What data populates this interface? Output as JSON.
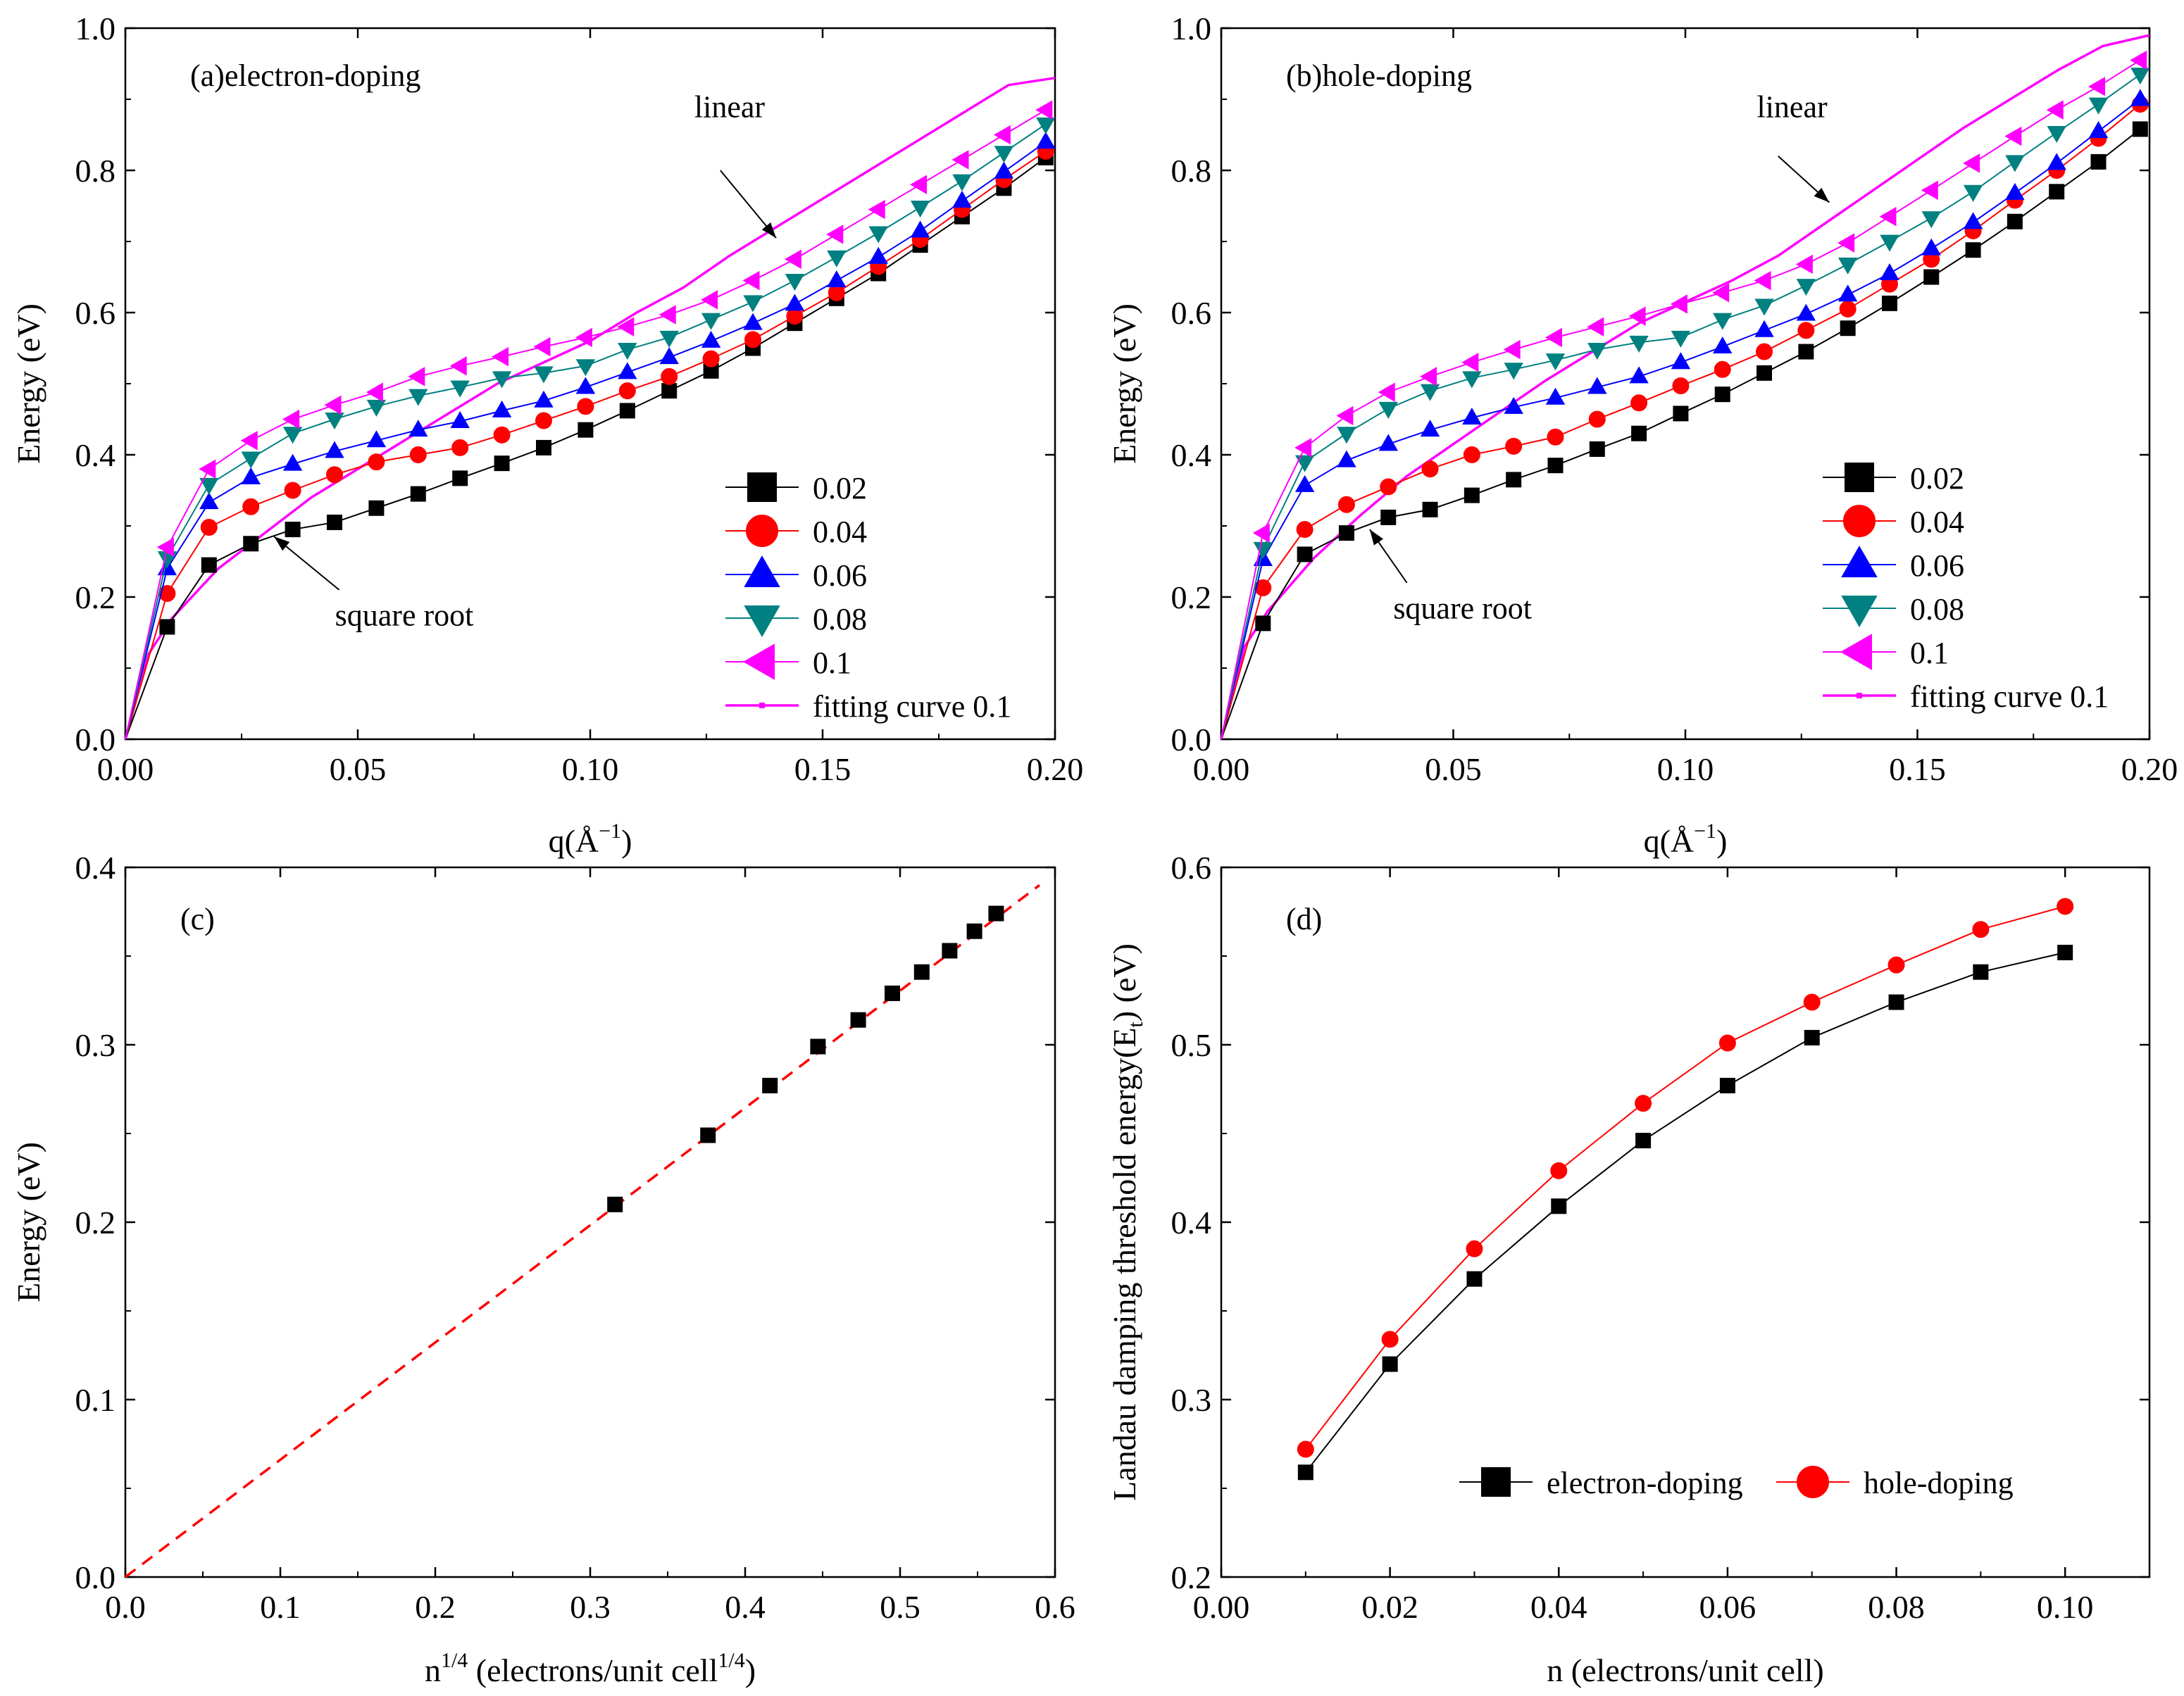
{
  "chart_data": [
    {
      "id": "a",
      "type": "line",
      "panel_label": "(a)",
      "title": "electron-doping",
      "xlabel": "q(Å",
      "xlabel_sup": "−1",
      "xlabel_end": ")",
      "ylabel": "Energy (eV)",
      "xlim": [
        0,
        0.2
      ],
      "ylim": [
        0,
        1.0
      ],
      "xticks": [
        0,
        0.05,
        0.1,
        0.15,
        0.2
      ],
      "xtick_labels": [
        "0.00",
        "0.05",
        "0.10",
        "0.15",
        "0.20"
      ],
      "yticks": [
        0,
        0.2,
        0.4,
        0.6,
        0.8,
        1.0
      ],
      "ytick_labels": [
        "0.0",
        "0.2",
        "0.4",
        "0.6",
        "0.8",
        "1.0"
      ],
      "x": [
        0,
        0.009,
        0.018,
        0.027,
        0.036,
        0.045,
        0.054,
        0.063,
        0.072,
        0.081,
        0.09,
        0.099,
        0.108,
        0.117,
        0.126,
        0.135,
        0.144,
        0.153,
        0.162,
        0.171,
        0.18,
        0.189,
        0.198
      ],
      "series": [
        {
          "name": "0.02",
          "color": "#000000",
          "marker": "square",
          "values": [
            0,
            0.158,
            0.245,
            0.275,
            0.295,
            0.305,
            0.325,
            0.345,
            0.367,
            0.388,
            0.41,
            0.435,
            0.462,
            0.49,
            0.518,
            0.55,
            0.585,
            0.62,
            0.655,
            0.695,
            0.735,
            0.775,
            0.818
          ]
        },
        {
          "name": "0.04",
          "color": "#ff0000",
          "marker": "circle",
          "values": [
            0,
            0.205,
            0.298,
            0.327,
            0.35,
            0.372,
            0.39,
            0.4,
            0.41,
            0.428,
            0.448,
            0.468,
            0.49,
            0.51,
            0.535,
            0.562,
            0.595,
            0.628,
            0.665,
            0.703,
            0.745,
            0.787,
            0.827
          ]
        },
        {
          "name": "0.06",
          "color": "#0000ff",
          "marker": "triangle-up",
          "values": [
            0,
            0.24,
            0.333,
            0.368,
            0.387,
            0.405,
            0.42,
            0.435,
            0.447,
            0.462,
            0.476,
            0.495,
            0.516,
            0.537,
            0.56,
            0.585,
            0.612,
            0.645,
            0.678,
            0.715,
            0.757,
            0.798,
            0.84
          ]
        },
        {
          "name": "0.08",
          "color": "#008080",
          "marker": "triangle-down",
          "values": [
            0,
            0.255,
            0.358,
            0.395,
            0.43,
            0.45,
            0.468,
            0.483,
            0.495,
            0.508,
            0.515,
            0.525,
            0.548,
            0.565,
            0.59,
            0.615,
            0.645,
            0.678,
            0.712,
            0.748,
            0.785,
            0.825,
            0.865
          ]
        },
        {
          "name": "0.1",
          "color": "#ff00ff",
          "marker": "triangle-left",
          "values": [
            0,
            0.27,
            0.38,
            0.42,
            0.45,
            0.47,
            0.488,
            0.51,
            0.525,
            0.538,
            0.552,
            0.565,
            0.58,
            0.597,
            0.618,
            0.645,
            0.675,
            0.71,
            0.745,
            0.78,
            0.815,
            0.85,
            0.885
          ]
        }
      ],
      "fit": {
        "name": "fitting curve 0.1",
        "color": "#ff00ff",
        "x": [
          0,
          0.005,
          0.01,
          0.02,
          0.03,
          0.04,
          0.05,
          0.06,
          0.07,
          0.08,
          0.09,
          0.1,
          0.11,
          0.12,
          0.13,
          0.14,
          0.15,
          0.16,
          0.17,
          0.18,
          0.19,
          0.2
        ],
        "y": [
          0,
          0.12,
          0.17,
          0.24,
          0.29,
          0.34,
          0.38,
          0.42,
          0.46,
          0.5,
          0.53,
          0.56,
          0.6,
          0.635,
          0.68,
          0.72,
          0.76,
          0.8,
          0.84,
          0.88,
          0.92,
          0.93
        ]
      },
      "annotations": [
        {
          "text": "linear",
          "tx": 0.13,
          "ty": 0.875,
          "ax": 0.14,
          "ay": 0.705,
          "from_x": 0.128,
          "from_y": 0.8
        },
        {
          "text": "square root",
          "tx": 0.06,
          "ty": 0.16,
          "ax": 0.032,
          "ay": 0.285,
          "from_x": 0.046,
          "from_y": 0.21
        }
      ],
      "legend_location": "lower-right"
    },
    {
      "id": "b",
      "type": "line",
      "panel_label": "(b)",
      "title": "hole-doping",
      "xlabel": "q(Å",
      "xlabel_sup": "−1",
      "xlabel_end": ")",
      "ylabel": "Energy (eV)",
      "xlim": [
        0,
        0.2
      ],
      "ylim": [
        0,
        1.0
      ],
      "xticks": [
        0,
        0.05,
        0.1,
        0.15,
        0.2
      ],
      "xtick_labels": [
        "0.00",
        "0.05",
        "0.10",
        "0.15",
        "0.20"
      ],
      "yticks": [
        0,
        0.2,
        0.4,
        0.6,
        0.8,
        1.0
      ],
      "ytick_labels": [
        "0.0",
        "0.2",
        "0.4",
        "0.6",
        "0.8",
        "1.0"
      ],
      "x": [
        0,
        0.009,
        0.018,
        0.027,
        0.036,
        0.045,
        0.054,
        0.063,
        0.072,
        0.081,
        0.09,
        0.099,
        0.108,
        0.117,
        0.126,
        0.135,
        0.144,
        0.153,
        0.162,
        0.171,
        0.18,
        0.189,
        0.198
      ],
      "series": [
        {
          "name": "0.02",
          "color": "#000000",
          "marker": "square",
          "values": [
            0,
            0.163,
            0.26,
            0.29,
            0.312,
            0.323,
            0.343,
            0.365,
            0.385,
            0.408,
            0.43,
            0.458,
            0.485,
            0.515,
            0.545,
            0.578,
            0.613,
            0.65,
            0.688,
            0.728,
            0.77,
            0.812,
            0.858
          ]
        },
        {
          "name": "0.04",
          "color": "#ff0000",
          "marker": "circle",
          "values": [
            0,
            0.213,
            0.295,
            0.33,
            0.355,
            0.38,
            0.4,
            0.412,
            0.425,
            0.45,
            0.473,
            0.497,
            0.52,
            0.545,
            0.575,
            0.605,
            0.64,
            0.675,
            0.715,
            0.758,
            0.8,
            0.845,
            0.893
          ]
        },
        {
          "name": "0.06",
          "color": "#0000ff",
          "marker": "triangle-up",
          "values": [
            0,
            0.253,
            0.357,
            0.392,
            0.415,
            0.435,
            0.452,
            0.467,
            0.48,
            0.495,
            0.51,
            0.53,
            0.552,
            0.575,
            0.598,
            0.625,
            0.655,
            0.69,
            0.727,
            0.768,
            0.81,
            0.855,
            0.9
          ]
        },
        {
          "name": "0.08",
          "color": "#008080",
          "marker": "triangle-down",
          "values": [
            0,
            0.268,
            0.39,
            0.43,
            0.465,
            0.49,
            0.508,
            0.52,
            0.533,
            0.548,
            0.558,
            0.565,
            0.59,
            0.61,
            0.638,
            0.668,
            0.7,
            0.733,
            0.77,
            0.812,
            0.853,
            0.893,
            0.935
          ]
        },
        {
          "name": "0.1",
          "color": "#ff00ff",
          "marker": "triangle-left",
          "values": [
            0,
            0.29,
            0.41,
            0.455,
            0.488,
            0.51,
            0.53,
            0.548,
            0.565,
            0.58,
            0.595,
            0.612,
            0.628,
            0.645,
            0.668,
            0.698,
            0.735,
            0.772,
            0.81,
            0.848,
            0.885,
            0.918,
            0.955
          ]
        }
      ],
      "fit": {
        "name": "fitting curve 0.1",
        "color": "#ff00ff",
        "x": [
          0,
          0.005,
          0.01,
          0.02,
          0.03,
          0.04,
          0.05,
          0.06,
          0.07,
          0.08,
          0.09,
          0.1,
          0.11,
          0.12,
          0.13,
          0.14,
          0.15,
          0.16,
          0.17,
          0.18,
          0.19,
          0.2
        ],
        "y": [
          0,
          0.13,
          0.18,
          0.255,
          0.315,
          0.37,
          0.415,
          0.46,
          0.505,
          0.545,
          0.585,
          0.615,
          0.645,
          0.68,
          0.725,
          0.77,
          0.815,
          0.86,
          0.9,
          0.94,
          0.975,
          0.99
        ]
      },
      "annotations": [
        {
          "text": "linear",
          "tx": 0.123,
          "ty": 0.875,
          "ax": 0.131,
          "ay": 0.755,
          "from_x": 0.12,
          "from_y": 0.82
        },
        {
          "text": "square root",
          "tx": 0.052,
          "ty": 0.17,
          "ax": 0.032,
          "ay": 0.295,
          "from_x": 0.04,
          "from_y": 0.22
        }
      ],
      "legend_location": "lower-right"
    },
    {
      "id": "c",
      "type": "scatter",
      "panel_label": "(c)",
      "xlabel": "n",
      "xlabel_sup": "1/4",
      "xlabel_mid": " (electrons/unit cell",
      "xlabel_sup2": "1/4",
      "xlabel_end": ")",
      "ylabel": "Energy (eV)",
      "xlim": [
        0,
        0.6
      ],
      "ylim": [
        0,
        0.4
      ],
      "xticks": [
        0,
        0.1,
        0.2,
        0.3,
        0.4,
        0.5,
        0.6
      ],
      "xtick_labels": [
        "0.0",
        "0.1",
        "0.2",
        "0.3",
        "0.4",
        "0.5",
        "0.6"
      ],
      "yticks": [
        0,
        0.1,
        0.2,
        0.3,
        0.4
      ],
      "ytick_labels": [
        "0.0",
        "0.1",
        "0.2",
        "0.3",
        "0.4"
      ],
      "points": {
        "x": [
          0.316,
          0.376,
          0.416,
          0.447,
          0.473,
          0.495,
          0.514,
          0.532,
          0.548,
          0.562
        ],
        "y": [
          0.21,
          0.249,
          0.277,
          0.299,
          0.314,
          0.329,
          0.341,
          0.353,
          0.364,
          0.374
        ],
        "color": "#000000",
        "marker": "square"
      },
      "fit": {
        "x": [
          0,
          0.59
        ],
        "y": [
          0,
          0.39
        ],
        "color": "#ff0000",
        "style": "dashed"
      }
    },
    {
      "id": "d",
      "type": "line",
      "panel_label": "(d)",
      "xlabel": "n (electrons/unit cell)",
      "ylabel": "Landau damping threshold energy(E",
      "ylabel_sub": "t",
      "ylabel_end": ") (eV)",
      "xlim": [
        0,
        0.11
      ],
      "ylim": [
        0.2,
        0.6
      ],
      "xticks": [
        0,
        0.02,
        0.04,
        0.06,
        0.08,
        0.1
      ],
      "xtick_labels": [
        "0.00",
        "0.02",
        "0.04",
        "0.06",
        "0.08",
        "0.10"
      ],
      "yticks": [
        0.2,
        0.3,
        0.4,
        0.5,
        0.6
      ],
      "ytick_labels": [
        "0.2",
        "0.3",
        "0.4",
        "0.5",
        "0.6"
      ],
      "x": [
        0.01,
        0.02,
        0.03,
        0.04,
        0.05,
        0.06,
        0.07,
        0.08,
        0.09,
        0.1
      ],
      "series": [
        {
          "name": "electron-doping",
          "color": "#000000",
          "marker": "square",
          "values": [
            0.259,
            0.32,
            0.368,
            0.409,
            0.446,
            0.477,
            0.504,
            0.524,
            0.541,
            0.552
          ]
        },
        {
          "name": "hole-doping",
          "color": "#ff0000",
          "marker": "circle",
          "values": [
            0.272,
            0.334,
            0.385,
            0.429,
            0.467,
            0.501,
            0.524,
            0.545,
            0.565,
            0.578
          ]
        }
      ],
      "legend_location": "lower-center"
    }
  ]
}
